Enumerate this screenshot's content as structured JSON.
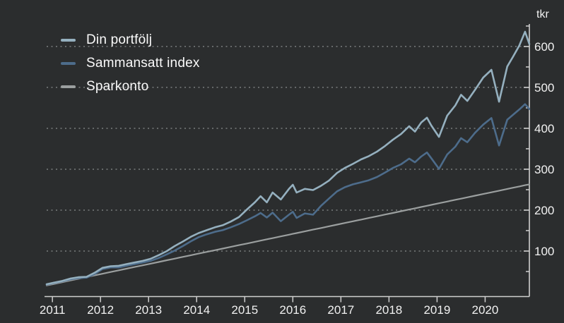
{
  "chart_data": {
    "type": "line",
    "title": "",
    "y_unit": "tkr",
    "legend_position": "top-left",
    "grid": "horizontal dotted lines at every 100 tkr",
    "background_color": "#2b2d2e",
    "axis_color": "#cfcfcf",
    "grid_color": "#7b7e7f",
    "text_color": "#f1f1f1",
    "x_domain": [
      2010.88,
      2020.92
    ],
    "y_domain": [
      0,
      655
    ],
    "x_ticks": [
      2011,
      2012,
      2013,
      2014,
      2015,
      2016,
      2017,
      2018,
      2019,
      2020
    ],
    "y_major_ticks": [
      100,
      200,
      300,
      400,
      500,
      600
    ],
    "y_minor_ticks": [
      50,
      150,
      250,
      350,
      450,
      550,
      650
    ],
    "x": [
      2010.88,
      2011.04,
      2011.21,
      2011.38,
      2011.54,
      2011.71,
      2011.88,
      2012.04,
      2012.21,
      2012.38,
      2012.54,
      2012.71,
      2012.88,
      2013.04,
      2013.21,
      2013.38,
      2013.54,
      2013.71,
      2013.88,
      2014.04,
      2014.21,
      2014.38,
      2014.54,
      2014.71,
      2014.88,
      2015.04,
      2015.21,
      2015.33,
      2015.46,
      2015.58,
      2015.75,
      2015.92,
      2016.0,
      2016.08,
      2016.25,
      2016.42,
      2016.58,
      2016.75,
      2016.92,
      2017.08,
      2017.25,
      2017.42,
      2017.58,
      2017.75,
      2017.92,
      2018.08,
      2018.25,
      2018.42,
      2018.54,
      2018.67,
      2018.79,
      2018.88,
      2019.04,
      2019.21,
      2019.38,
      2019.5,
      2019.63,
      2019.79,
      2019.96,
      2020.13,
      2020.29,
      2020.46,
      2020.58,
      2020.71,
      2020.83,
      2020.92
    ],
    "series": [
      {
        "name": "Din portfölj",
        "color": "#95b0bf",
        "stroke_width": 2.6,
        "values": [
          19,
          23,
          27,
          33,
          36,
          37,
          47,
          59,
          63,
          64,
          68,
          72,
          76,
          81,
          90,
          100,
          112,
          123,
          135,
          144,
          151,
          158,
          163,
          172,
          183,
          201,
          219,
          234,
          219,
          243,
          226,
          252,
          262,
          243,
          252,
          249,
          259,
          272,
          291,
          303,
          313,
          324,
          332,
          343,
          357,
          372,
          386,
          405,
          392,
          414,
          426,
          407,
          379,
          431,
          456,
          482,
          467,
          494,
          524,
          543,
          465,
          551,
          575,
          602,
          636,
          606
        ]
      },
      {
        "name": "Sammansatt index",
        "color": "#4d6c8b",
        "stroke_width": 2.6,
        "values": [
          18,
          22,
          26,
          31,
          34,
          35,
          44,
          56,
          60,
          60,
          64,
          68,
          72,
          76,
          83,
          92,
          101,
          112,
          124,
          134,
          141,
          147,
          151,
          158,
          166,
          175,
          185,
          193,
          182,
          194,
          173,
          189,
          196,
          181,
          192,
          189,
          210,
          228,
          246,
          256,
          263,
          268,
          273,
          281,
          292,
          303,
          312,
          326,
          317,
          331,
          341,
          327,
          301,
          336,
          355,
          376,
          366,
          389,
          409,
          425,
          358,
          421,
          433,
          446,
          459,
          447
        ]
      },
      {
        "name": "Sparkonto",
        "color": "#9b9f9f",
        "stroke_width": 2.2,
        "values": [
          16,
          19.9,
          24.1,
          28.3,
          32.2,
          36.4,
          40.6,
          44.5,
          48.7,
          52.9,
          56.8,
          61,
          65.2,
          69.1,
          73.3,
          77.5,
          81.4,
          85.6,
          89.8,
          93.7,
          97.9,
          102.1,
          106,
          110.2,
          114.4,
          118.3,
          122.5,
          125.5,
          128.7,
          131.6,
          135.8,
          140,
          142,
          143.9,
          148.1,
          152.3,
          156.2,
          160.4,
          164.6,
          168.5,
          172.7,
          176.9,
          180.8,
          185,
          189.2,
          193.1,
          197.3,
          201.5,
          204.5,
          207.7,
          210.6,
          212.8,
          216.8,
          221,
          225.2,
          228.1,
          231.3,
          235.3,
          239.5,
          243.6,
          247.6,
          251.8,
          254.7,
          257.9,
          260.9,
          263
        ]
      }
    ]
  }
}
